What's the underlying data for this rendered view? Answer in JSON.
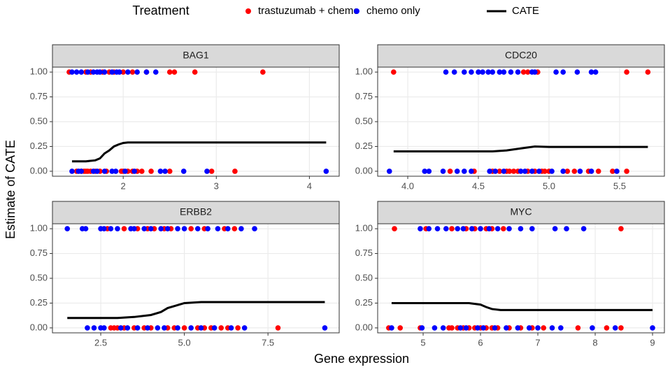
{
  "legend": {
    "title": "Treatment",
    "items": [
      {
        "name": "trastuzumab + chemo",
        "color": "#ff0000",
        "kind": "point"
      },
      {
        "name": "chemo only",
        "color": "#0000ff",
        "kind": "point"
      },
      {
        "name": "CATE",
        "color": "#000000",
        "kind": "line"
      }
    ]
  },
  "x_label": "Gene expression",
  "y_label": "Estimate of CATE",
  "chart_data": [
    {
      "type": "scatter",
      "title": "BAG1",
      "xlim": [
        1.24,
        4.32
      ],
      "xticks": [
        2,
        3,
        4
      ],
      "ylim": [
        -0.05,
        1.05
      ],
      "yticks": [
        {
          "value": 0,
          "label": "0.00"
        },
        {
          "value": 0.25,
          "label": "0.25"
        },
        {
          "value": 0.5,
          "label": "0.50"
        },
        {
          "value": 0.75,
          "label": "0.75"
        },
        {
          "value": 1,
          "label": "1.00"
        }
      ],
      "grid": true,
      "series": [
        {
          "x": [
            1.42,
            1.6,
            1.65,
            1.78,
            1.85,
            1.9,
            2.0,
            2.1,
            2.25,
            2.5,
            2.55,
            2.77,
            3.5,
            1.5,
            1.55,
            1.58,
            1.6,
            1.62,
            1.65,
            1.7,
            1.75,
            1.82,
            1.98,
            2.0,
            2.05,
            2.1,
            2.15,
            2.2,
            2.3,
            2.5,
            2.95,
            3.2
          ],
          "values": [
            1,
            1,
            1,
            1,
            1,
            1,
            1,
            1,
            1,
            1,
            1,
            1,
            1,
            0,
            0,
            0,
            0,
            0,
            0,
            0,
            0,
            0,
            0,
            0,
            0,
            0,
            0,
            0,
            0,
            0,
            0,
            0
          ]
        },
        {
          "x": [
            1.45,
            1.5,
            1.55,
            1.62,
            1.68,
            1.72,
            1.75,
            1.8,
            1.88,
            1.93,
            1.96,
            2.05,
            2.15,
            2.25,
            2.35,
            1.45,
            1.52,
            1.55,
            1.68,
            1.72,
            1.8,
            1.88,
            1.92,
            2.02,
            2.12,
            2.4,
            2.45,
            2.65,
            2.9,
            4.18
          ],
          "values": [
            1,
            1,
            1,
            1,
            1,
            1,
            1,
            1,
            1,
            1,
            1,
            1,
            1,
            1,
            1,
            0,
            0,
            0,
            0,
            0,
            0,
            0,
            0,
            0,
            0,
            0,
            0,
            0,
            0,
            0
          ]
        },
        {
          "x": [
            1.45,
            1.6,
            1.7,
            1.75,
            1.8,
            1.85,
            1.9,
            1.95,
            2.0,
            2.05,
            4.18
          ],
          "values": [
            0.1,
            0.1,
            0.11,
            0.13,
            0.18,
            0.21,
            0.25,
            0.27,
            0.285,
            0.29,
            0.29
          ]
        }
      ]
    },
    {
      "type": "scatter",
      "title": "CDC20",
      "xlim": [
        3.787,
        5.817
      ],
      "xticks": [
        {
          "value": 4,
          "label": "4.0"
        },
        4.5,
        {
          "value": 5,
          "label": "5.0"
        },
        5.5
      ],
      "ylim": [
        -0.05,
        1.05
      ],
      "yticks": [
        {
          "value": 0,
          "label": "0.00"
        },
        {
          "value": 0.25,
          "label": "0.25"
        },
        {
          "value": 0.5,
          "label": "0.50"
        },
        {
          "value": 0.75,
          "label": "0.75"
        },
        {
          "value": 1,
          "label": "1.00"
        }
      ],
      "grid": true,
      "series": [
        {
          "x": [
            3.9,
            4.82,
            4.85,
            4.92,
            5.55,
            5.7,
            4.3,
            4.47,
            4.6,
            4.65,
            4.7,
            4.72,
            4.75,
            4.78,
            4.85,
            4.9,
            4.95,
            4.97,
            5.0,
            5.13,
            5.18,
            5.28,
            5.35,
            5.45,
            5.55
          ],
          "values": [
            1,
            1,
            1,
            1,
            1,
            1,
            0,
            0,
            0,
            0,
            0,
            0,
            0,
            0,
            0,
            0,
            0,
            0,
            0,
            0,
            0,
            0,
            0,
            0,
            0
          ]
        },
        {
          "x": [
            4.27,
            4.33,
            4.4,
            4.45,
            4.5,
            4.53,
            4.57,
            4.6,
            4.65,
            4.68,
            4.73,
            4.78,
            4.88,
            4.9,
            5.05,
            5.1,
            5.2,
            5.3,
            5.33,
            3.87,
            4.12,
            4.15,
            4.25,
            4.35,
            4.4,
            4.45,
            4.58,
            4.62,
            4.68,
            4.8,
            4.83,
            4.88,
            4.93,
            5.02,
            5.1,
            5.22,
            5.3,
            5.48
          ],
          "values": [
            1,
            1,
            1,
            1,
            1,
            1,
            1,
            1,
            1,
            1,
            1,
            1,
            1,
            1,
            1,
            1,
            1,
            1,
            1,
            0,
            0,
            0,
            0,
            0,
            0,
            0,
            0,
            0,
            0,
            0,
            0,
            0,
            0,
            0,
            0,
            0,
            0,
            0
          ]
        },
        {
          "x": [
            3.9,
            4.6,
            4.7,
            4.8,
            4.9,
            5.0,
            5.7
          ],
          "values": [
            0.2,
            0.2,
            0.21,
            0.23,
            0.25,
            0.245,
            0.245
          ]
        }
      ]
    },
    {
      "type": "scatter",
      "title": "ERBB2",
      "xlim": [
        1.056,
        9.63
      ],
      "xticks": [
        2.5,
        {
          "value": 5,
          "label": "5.0"
        },
        7.5
      ],
      "ylim": [
        -0.05,
        1.05
      ],
      "yticks": [
        {
          "value": 0,
          "label": "0.00"
        },
        {
          "value": 0.25,
          "label": "0.25"
        },
        {
          "value": 0.5,
          "label": "0.50"
        },
        {
          "value": 0.75,
          "label": "0.75"
        },
        {
          "value": 1,
          "label": "1.00"
        }
      ],
      "grid": true,
      "series": [
        {
          "x": [
            2.7,
            3.2,
            3.6,
            3.9,
            4.1,
            4.4,
            4.6,
            5.2,
            5.6,
            6.2,
            6.5,
            2.8,
            2.9,
            3.0,
            3.2,
            3.5,
            3.8,
            4.0,
            4.5,
            4.7,
            5.0,
            5.4,
            5.6,
            5.8,
            6.1,
            6.3,
            6.6,
            7.8
          ],
          "values": [
            1,
            1,
            1,
            1,
            1,
            1,
            1,
            1,
            1,
            1,
            1,
            0,
            0,
            0,
            0,
            0,
            0,
            0,
            0,
            0,
            0,
            0,
            0,
            0,
            0,
            0,
            0,
            0
          ]
        },
        {
          "x": [
            1.5,
            1.95,
            2.05,
            2.5,
            2.6,
            2.8,
            3.0,
            3.4,
            3.5,
            3.8,
            4.0,
            4.3,
            4.5,
            4.8,
            5.0,
            5.4,
            5.7,
            6.0,
            6.3,
            6.7,
            7.1,
            2.1,
            2.3,
            2.5,
            2.6,
            3.1,
            3.3,
            3.6,
            3.9,
            4.2,
            4.4,
            4.8,
            5.2,
            5.5,
            5.9,
            6.4,
            6.8,
            9.2
          ],
          "values": [
            1,
            1,
            1,
            1,
            1,
            1,
            1,
            1,
            1,
            1,
            1,
            1,
            1,
            1,
            1,
            1,
            1,
            1,
            1,
            1,
            1,
            0,
            0,
            0,
            0,
            0,
            0,
            0,
            0,
            0,
            0,
            0,
            0,
            0,
            0,
            0,
            0,
            0
          ]
        },
        {
          "x": [
            1.5,
            3.0,
            3.5,
            4.0,
            4.3,
            4.5,
            4.8,
            5.0,
            5.5,
            9.2
          ],
          "values": [
            0.1,
            0.1,
            0.11,
            0.13,
            0.16,
            0.2,
            0.23,
            0.25,
            0.26,
            0.26
          ]
        }
      ]
    },
    {
      "type": "scatter",
      "title": "MYC",
      "xlim": [
        4.207,
        9.207
      ],
      "xticks": [
        5,
        6,
        7,
        8,
        9
      ],
      "ylim": [
        -0.05,
        1.05
      ],
      "yticks": [
        {
          "value": 0,
          "label": "0.00"
        },
        {
          "value": 0.25,
          "label": "0.25"
        },
        {
          "value": 0.5,
          "label": "0.50"
        },
        {
          "value": 0.75,
          "label": "0.75"
        },
        {
          "value": 1,
          "label": "1.00"
        }
      ],
      "grid": true,
      "series": [
        {
          "x": [
            4.5,
            5.05,
            5.5,
            5.75,
            5.9,
            6.1,
            6.2,
            6.4,
            8.45,
            4.4,
            4.6,
            4.95,
            5.45,
            5.5,
            5.6,
            5.7,
            5.8,
            5.9,
            6.0,
            6.1,
            6.2,
            6.3,
            6.5,
            6.7,
            6.9,
            7.1,
            7.7,
            8.2,
            8.45
          ],
          "values": [
            1,
            1,
            1,
            1,
            1,
            1,
            1,
            1,
            1,
            0,
            0,
            0,
            0,
            0,
            0,
            0,
            0,
            0,
            0,
            0,
            0,
            0,
            0,
            0,
            0,
            0,
            0,
            0,
            0
          ]
        },
        {
          "x": [
            4.95,
            5.1,
            5.25,
            5.4,
            5.6,
            5.7,
            5.85,
            6.0,
            6.15,
            6.3,
            6.5,
            6.7,
            6.9,
            7.3,
            7.5,
            7.8,
            4.45,
            4.98,
            5.2,
            5.35,
            5.65,
            5.75,
            5.95,
            6.05,
            6.25,
            6.45,
            6.65,
            6.85,
            7.0,
            7.25,
            7.4,
            7.95,
            8.35,
            9.0
          ],
          "values": [
            1,
            1,
            1,
            1,
            1,
            1,
            1,
            1,
            1,
            1,
            1,
            1,
            1,
            1,
            1,
            1,
            0,
            0,
            0,
            0,
            0,
            0,
            0,
            0,
            0,
            0,
            0,
            0,
            0,
            0,
            0,
            0,
            0,
            0
          ]
        },
        {
          "x": [
            4.45,
            5.5,
            5.8,
            6.0,
            6.1,
            6.2,
            6.35,
            9.0
          ],
          "values": [
            0.25,
            0.25,
            0.25,
            0.235,
            0.21,
            0.19,
            0.18,
            0.18
          ]
        }
      ]
    }
  ]
}
